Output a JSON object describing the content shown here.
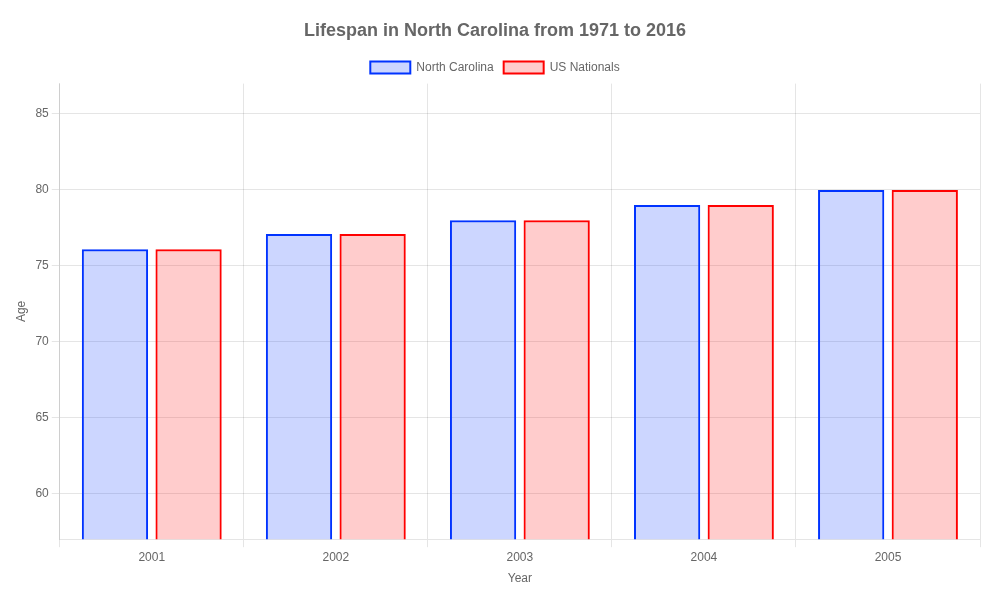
{
  "chart_data": {
    "type": "bar",
    "title": "Lifespan in North Carolina from 1971 to 2016",
    "xlabel": "Year",
    "ylabel": "Age",
    "categories": [
      "2001",
      "2002",
      "2003",
      "2004",
      "2005"
    ],
    "series": [
      {
        "name": "North Carolina",
        "color": "#0033ff",
        "values": [
          76.1,
          77.1,
          78.0,
          79.0,
          80.0
        ]
      },
      {
        "name": "US Nationals",
        "color": "#ff0000",
        "values": [
          76.1,
          77.1,
          78.0,
          79.0,
          80.0
        ]
      }
    ],
    "ylim": [
      57,
      87
    ],
    "yticks": [
      60,
      65,
      70,
      75,
      80,
      85
    ],
    "grid": true,
    "legend": "top"
  }
}
